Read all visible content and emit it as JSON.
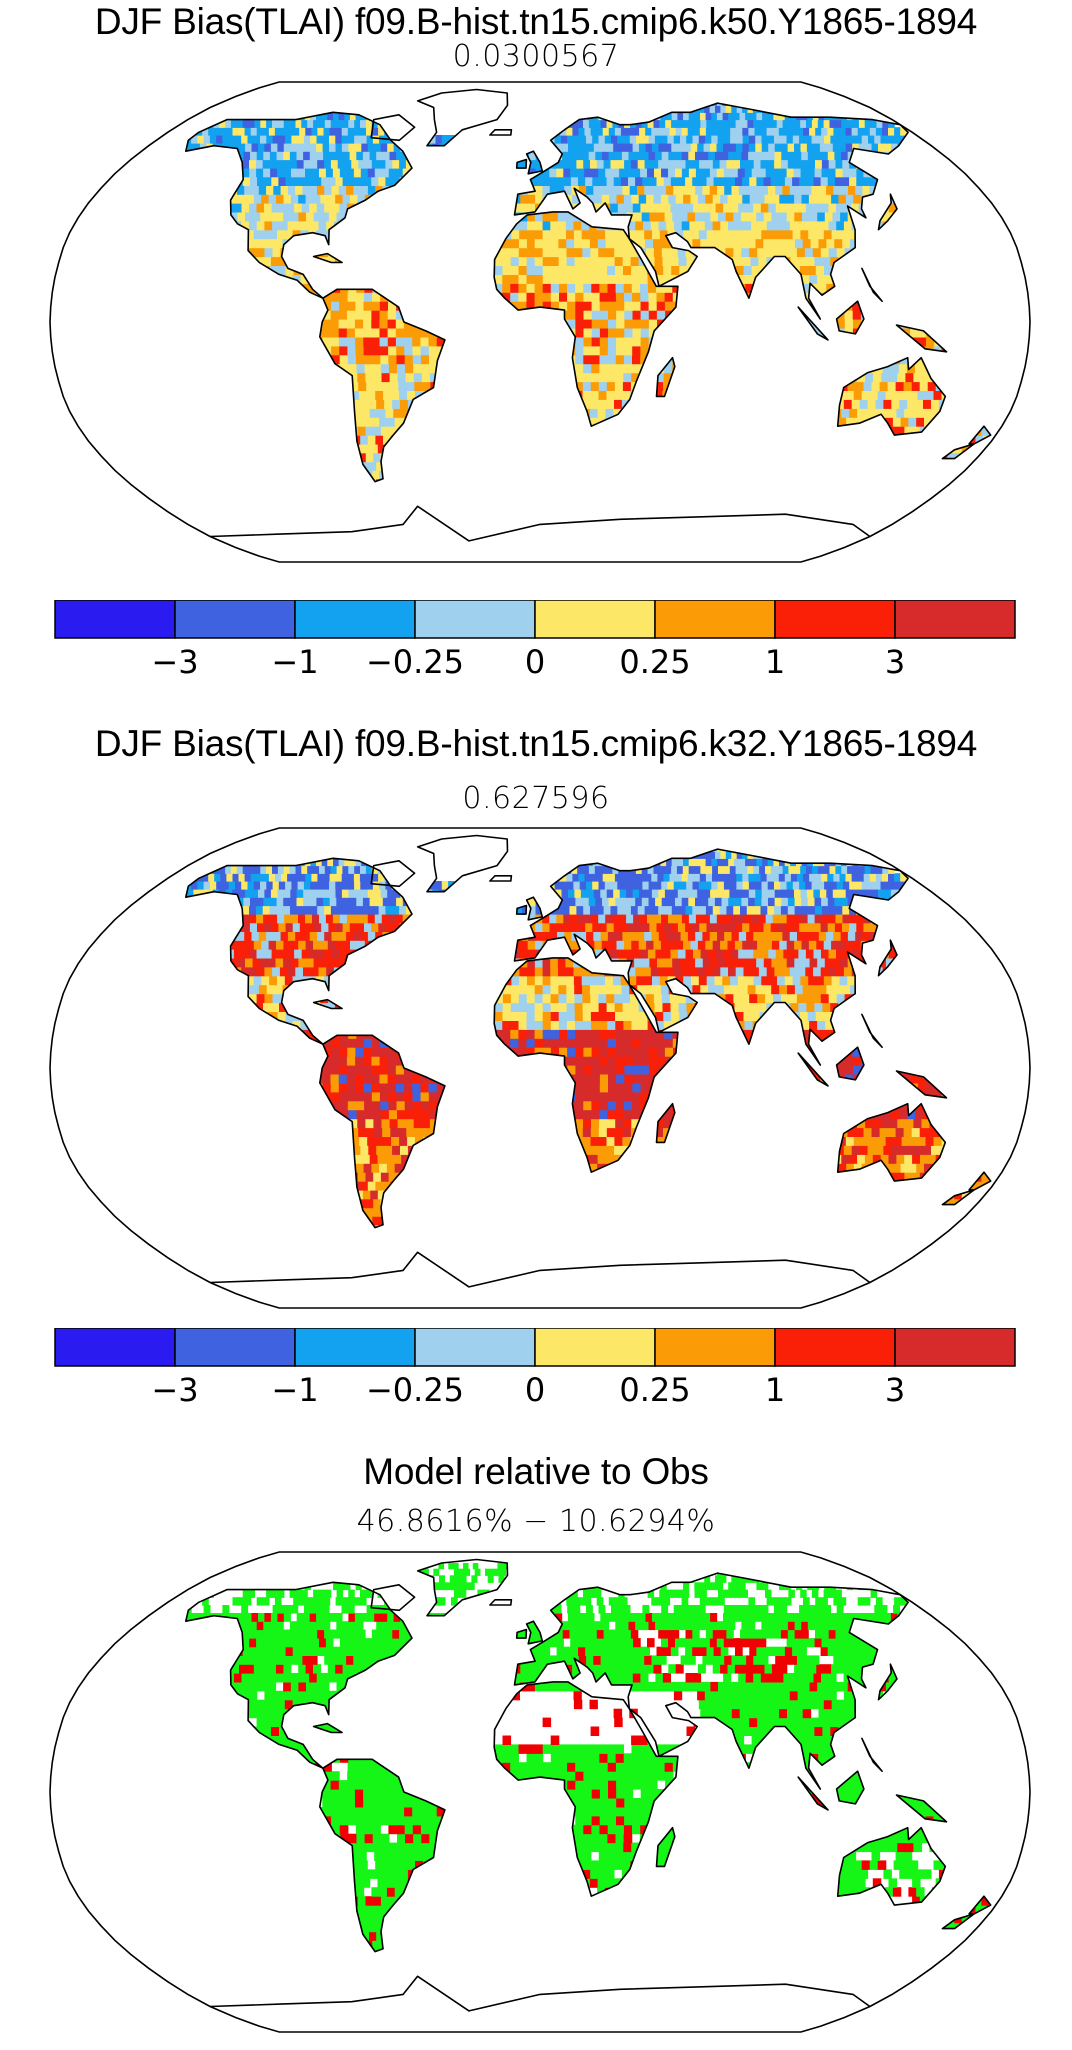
{
  "colors": {
    "bins": [
      "#2a1cf0",
      "#3f63e0",
      "#13a2f0",
      "#9fd1ef",
      "#fce866",
      "#fb9c06",
      "#fa2008",
      "#d72a2a"
    ],
    "green": "#16f616",
    "red": "#f00000",
    "coast": "#000000"
  },
  "chart_data": [
    {
      "type": "heatmap",
      "title": "DJF Bias(TLAI) f09.B-hist.tn15.cmip6.k50.Y1865-1894",
      "subtitle": "0.0300567",
      "projection": "robinson",
      "colorbar": {
        "levels": [
          "−3",
          "−1",
          "−0.25",
          "0",
          "0.25",
          "1",
          "3"
        ],
        "bins": 8
      }
    },
    {
      "type": "heatmap",
      "title": "DJF Bias(TLAI) f09.B-hist.tn15.cmip6.k32.Y1865-1894",
      "subtitle": "0.627596",
      "projection": "robinson",
      "colorbar": {
        "levels": [
          "−3",
          "−1",
          "−0.25",
          "0",
          "0.25",
          "1",
          "3"
        ],
        "bins": 8
      }
    },
    {
      "type": "heatmap",
      "title": "Model relative to Obs",
      "subtitle": "46.8616% − 10.6294%",
      "projection": "robinson"
    }
  ]
}
